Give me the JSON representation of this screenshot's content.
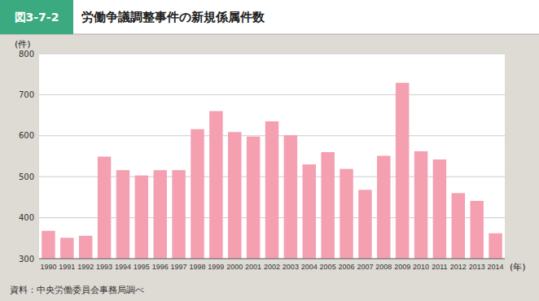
{
  "chart_data": {
    "type": "bar",
    "figure_label": "図3-7-2",
    "title": "労働争議調整事件の新規係属件数",
    "ylabel": "(件)",
    "xlabel": "(年)",
    "source": "資料：中央労働委員会事務局調べ",
    "categories": [
      "1990",
      "1991",
      "1992",
      "1993",
      "1994",
      "1995",
      "1996",
      "1997",
      "1998",
      "1999",
      "2000",
      "2001",
      "2002",
      "2003",
      "2004",
      "2005",
      "2006",
      "2007",
      "2008",
      "2009",
      "2010",
      "2011",
      "2012",
      "2013",
      "2014"
    ],
    "values": [
      368,
      351,
      356,
      549,
      516,
      503,
      516,
      516,
      616,
      660,
      609,
      598,
      635,
      601,
      530,
      560,
      519,
      468,
      551,
      729,
      562,
      542,
      460,
      441,
      362
    ],
    "color": "#f4a0b0",
    "ylim": [
      300,
      800
    ],
    "yticks": [
      300,
      400,
      500,
      600,
      700,
      800
    ],
    "grid": true
  }
}
